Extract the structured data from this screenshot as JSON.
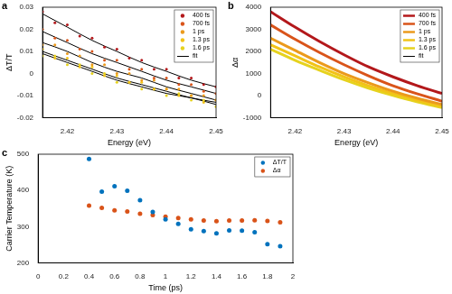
{
  "chart_data": [
    {
      "panel": "a",
      "type": "scatter",
      "x_label": "Energy (eV)",
      "y_label": "ΔT/T",
      "x": [
        2.415,
        2.4175,
        2.42,
        2.4225,
        2.425,
        2.4275,
        2.43,
        2.4325,
        2.435,
        2.4375,
        2.44,
        2.4425,
        2.445,
        2.4475,
        2.45
      ],
      "series": [
        {
          "name": "400 fs",
          "color": "#b3181b",
          "marker": "circle",
          "values": [
            0.028,
            0.023,
            0.022,
            0.017,
            0.016,
            0.012,
            0.011,
            0.007,
            0.006,
            0.002,
            0.002,
            -0.002,
            -0.002,
            -0.005,
            -0.006
          ]
        },
        {
          "name": "700 fs",
          "color": "#d9541a",
          "marker": "circle",
          "values": [
            0.02,
            0.016,
            0.015,
            0.011,
            0.01,
            0.006,
            0.006,
            0.002,
            0.002,
            -0.002,
            -0.002,
            -0.005,
            -0.005,
            -0.008,
            -0.009
          ]
        },
        {
          "name": "1 ps",
          "color": "#eb9a1c",
          "marker": "circle",
          "values": [
            0.013,
            0.013,
            0.009,
            0.008,
            0.004,
            0.004,
            0.0,
            0.0,
            -0.003,
            -0.003,
            -0.007,
            -0.007,
            -0.01,
            -0.01,
            -0.012
          ]
        },
        {
          "name": "1.3 ps",
          "color": "#f2c318",
          "marker": "circle",
          "values": [
            0.011,
            0.007,
            0.007,
            0.003,
            0.003,
            -0.001,
            -0.001,
            -0.004,
            -0.004,
            -0.007,
            -0.007,
            -0.01,
            -0.01,
            -0.013,
            -0.012
          ]
        },
        {
          "name": "1.6 ps",
          "color": "#e6d21e",
          "marker": "circle",
          "values": [
            0.008,
            0.008,
            0.004,
            0.004,
            0.0,
            0.0,
            -0.004,
            -0.004,
            -0.007,
            -0.007,
            -0.01,
            -0.009,
            -0.012,
            -0.012,
            -0.015
          ]
        }
      ],
      "fit": {
        "name": "fit",
        "color": "#000000",
        "line_style": "solid",
        "x": [
          2.415,
          2.42,
          2.425,
          2.43,
          2.435,
          2.44,
          2.445,
          2.45
        ],
        "values": [
          [
            0.027,
            0.021,
            0.015,
            0.01,
            0.005,
            0.001,
            -0.003,
            -0.006
          ],
          [
            0.019,
            0.014,
            0.009,
            0.005,
            0.001,
            -0.003,
            -0.006,
            -0.009
          ],
          [
            0.014,
            0.01,
            0.005,
            0.001,
            -0.002,
            -0.006,
            -0.009,
            -0.012
          ],
          [
            0.01,
            0.006,
            0.002,
            -0.002,
            -0.005,
            -0.008,
            -0.011,
            -0.013
          ],
          [
            0.009,
            0.005,
            0.001,
            -0.003,
            -0.006,
            -0.009,
            -0.011,
            -0.014
          ]
        ]
      },
      "xlim": [
        2.415,
        2.45
      ],
      "xticks": [
        2.42,
        2.43,
        2.44,
        2.45
      ],
      "ylim": [
        -0.02,
        0.03
      ],
      "yticks": [
        -0.02,
        -0.01,
        0,
        0.01,
        0.02,
        0.03
      ],
      "grid": false,
      "legend": "top-right"
    },
    {
      "panel": "b",
      "type": "line",
      "x_label": "Energy (eV)",
      "y_label": "Δα",
      "x": [
        2.415,
        2.42,
        2.425,
        2.43,
        2.435,
        2.44,
        2.445,
        2.45
      ],
      "series": [
        {
          "name": "400 fs",
          "color": "#b3181b",
          "line_style": "solid",
          "values": [
            3800,
            3100,
            2450,
            1850,
            1300,
            850,
            450,
            100
          ]
        },
        {
          "name": "700 fs",
          "color": "#d9541a",
          "line_style": "solid",
          "values": [
            3200,
            2550,
            1950,
            1400,
            900,
            450,
            80,
            -250
          ]
        },
        {
          "name": "1 ps",
          "color": "#eb9a1c",
          "line_style": "solid",
          "values": [
            2600,
            2050,
            1500,
            1000,
            580,
            200,
            -120,
            -400
          ]
        },
        {
          "name": "1.3 ps",
          "color": "#f2c318",
          "line_style": "solid",
          "values": [
            2300,
            1800,
            1300,
            850,
            450,
            100,
            -200,
            -480
          ]
        },
        {
          "name": "1.6 ps",
          "color": "#e6d21e",
          "line_style": "solid",
          "values": [
            2100,
            1600,
            1150,
            720,
            340,
            10,
            -280,
            -540
          ]
        }
      ],
      "fit": {
        "name": "fit",
        "color": "#000000",
        "line_style": "solid"
      },
      "xlim": [
        2.415,
        2.45
      ],
      "xticks": [
        2.42,
        2.43,
        2.44,
        2.45
      ],
      "ylim": [
        -1000,
        4000
      ],
      "yticks": [
        -1000,
        0,
        1000,
        2000,
        3000,
        4000
      ],
      "grid": false,
      "legend": "top-right"
    },
    {
      "panel": "c",
      "type": "scatter",
      "x_label": "Time (ps)",
      "y_label": "Carrier Temperature (K)",
      "x": [
        0.4,
        0.5,
        0.6,
        0.7,
        0.8,
        0.9,
        1.0,
        1.1,
        1.2,
        1.3,
        1.4,
        1.5,
        1.6,
        1.7,
        1.8,
        1.9
      ],
      "series": [
        {
          "name": "ΔT/T",
          "color": "#0072bd",
          "marker": "circle",
          "values": [
            487,
            397,
            412,
            399,
            373,
            341,
            320,
            308,
            293,
            288,
            282,
            290,
            289,
            285,
            252,
            246
          ]
        },
        {
          "name": "Δα",
          "color": "#d95319",
          "marker": "circle",
          "values": [
            358,
            352,
            345,
            342,
            336,
            332,
            328,
            324,
            320,
            317,
            315,
            317,
            317,
            318,
            316,
            312
          ]
        }
      ],
      "xlim": [
        0,
        2
      ],
      "xticks": [
        0,
        0.2,
        0.4,
        0.6,
        0.8,
        1,
        1.2,
        1.4,
        1.6,
        1.8,
        2
      ],
      "ylim": [
        200,
        500
      ],
      "yticks": [
        200,
        300,
        400,
        500
      ],
      "grid": false,
      "legend": "top-right"
    }
  ]
}
